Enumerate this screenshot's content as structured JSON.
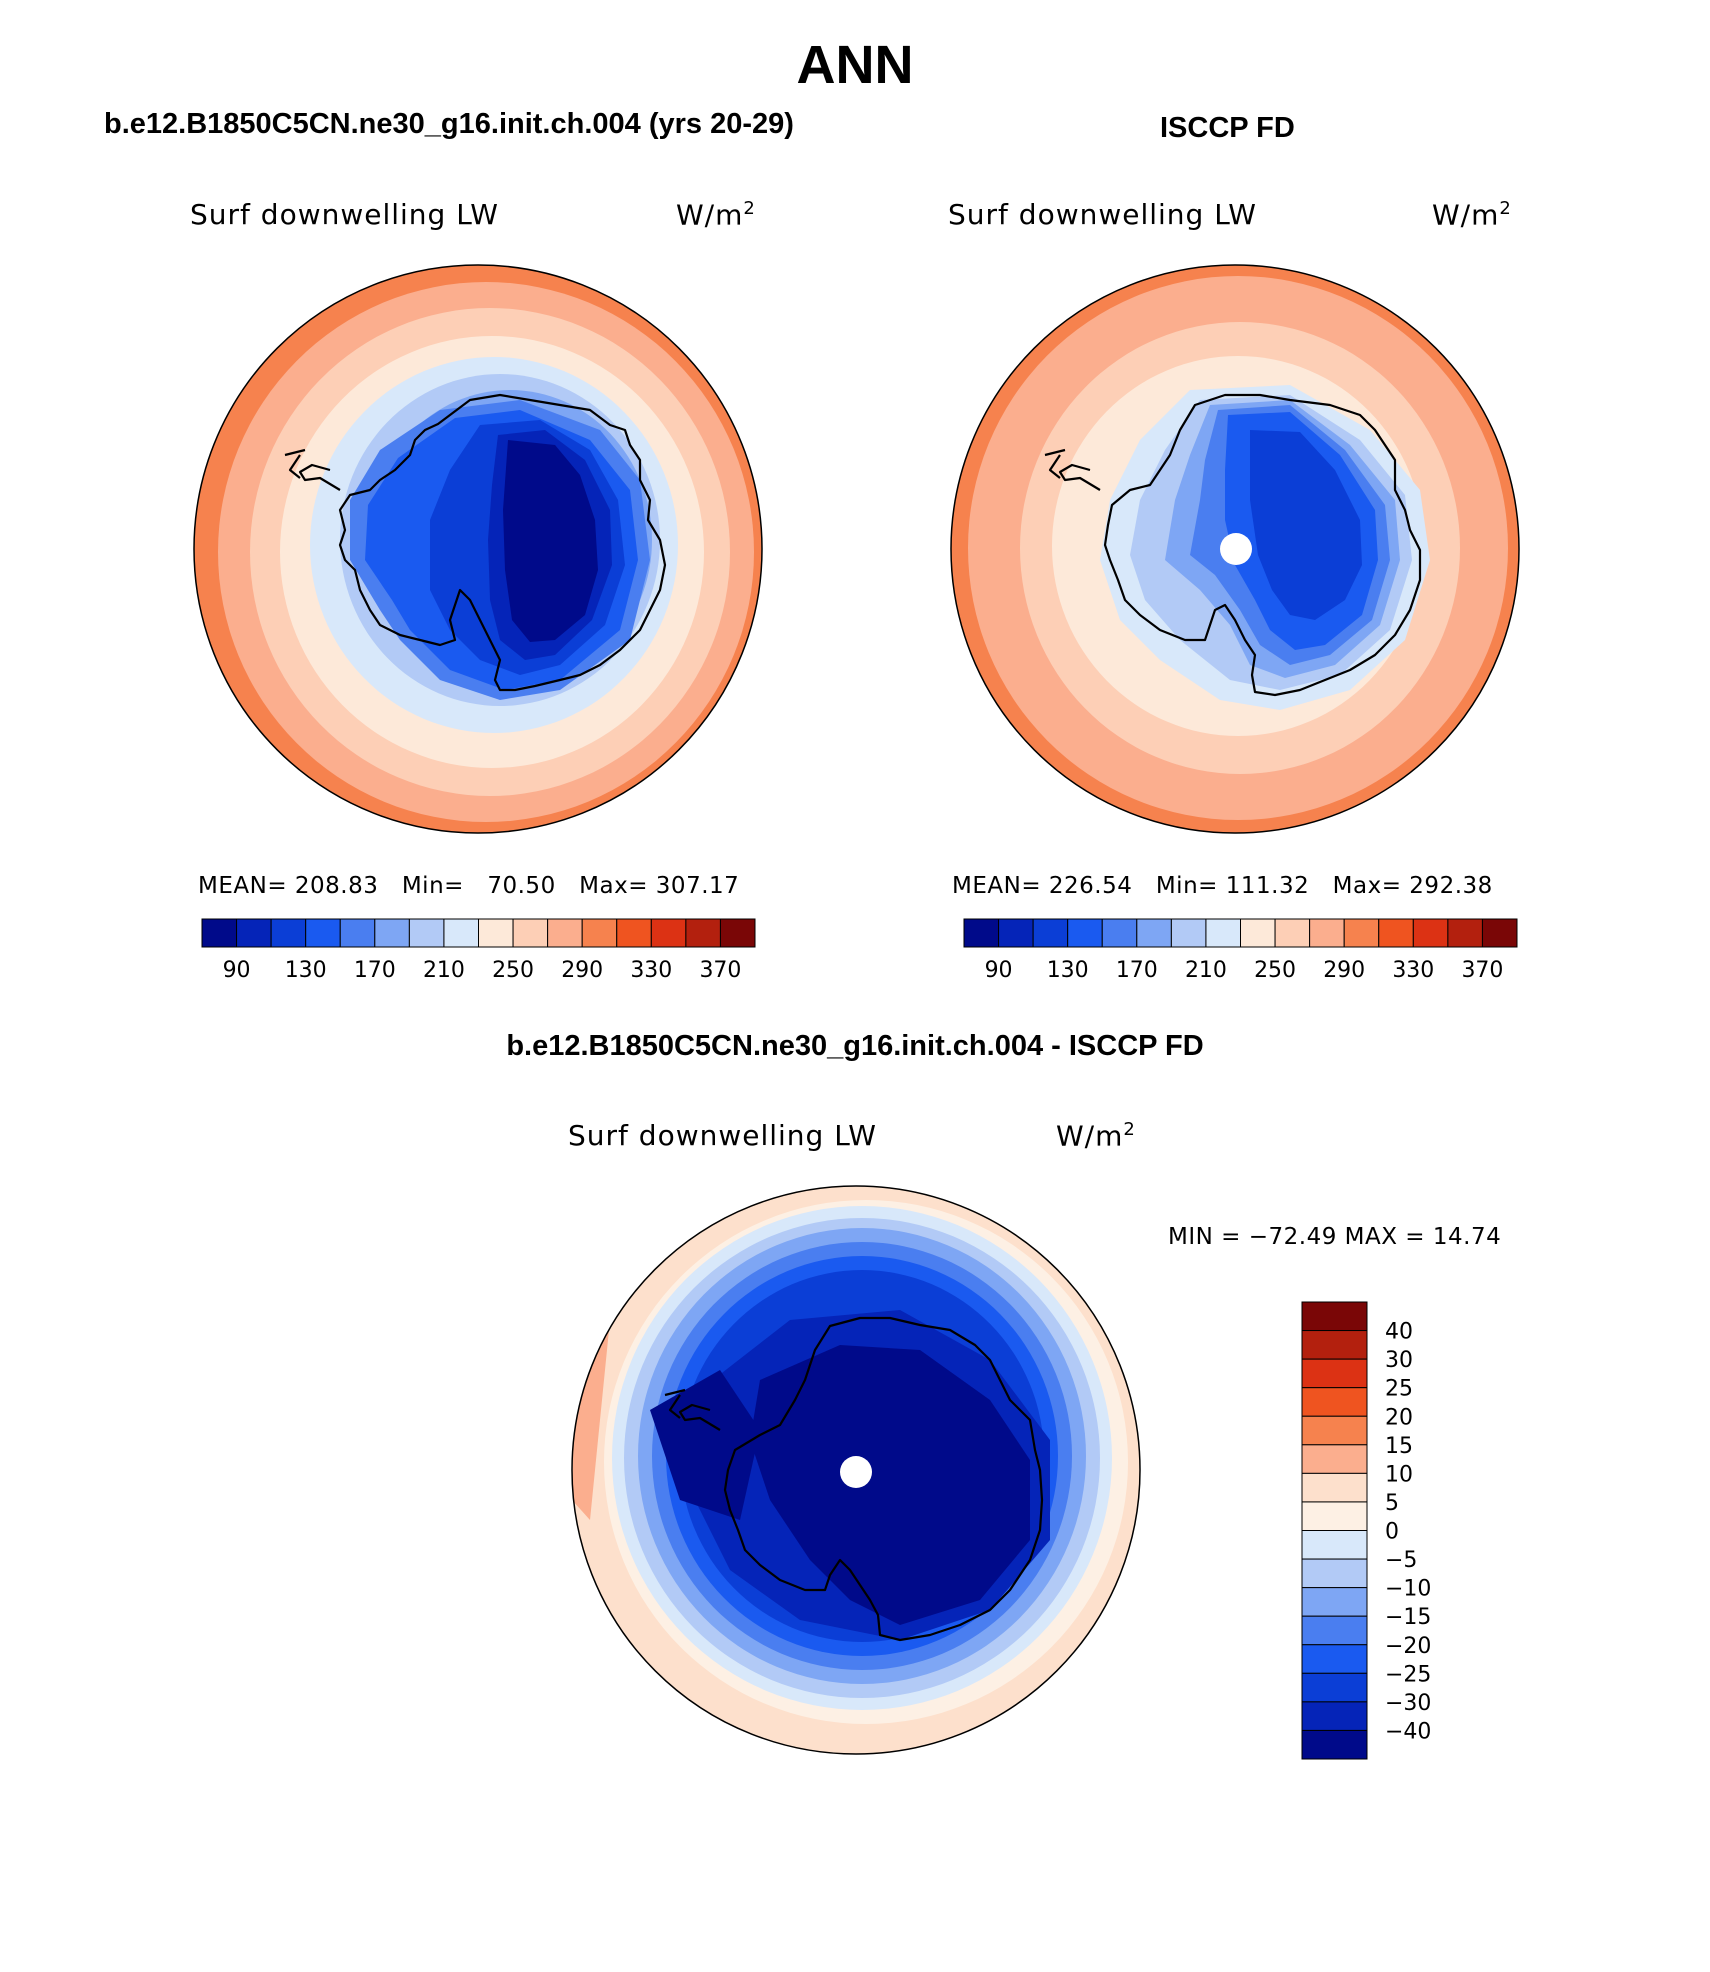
{
  "main_title": "ANN",
  "panels": [
    {
      "case_title": "b.e12.B1850C5CN.ne30_g16.init.ch.004 (yrs 20-29)",
      "variable": "Surf downwelling LW",
      "units_base": "W/m",
      "units_sup": "2",
      "stats": {
        "mean_label": "MEAN=",
        "mean": "208.83",
        "min_label": "Min=",
        "min": "70.50",
        "max_label": "Max=",
        "max": "307.17"
      }
    },
    {
      "case_title": "ISCCP FD",
      "variable": "Surf downwelling LW",
      "units_base": "W/m",
      "units_sup": "2",
      "stats": {
        "mean_label": "MEAN=",
        "mean": "226.54",
        "min_label": "Min=",
        "min": "111.32",
        "max_label": "Max=",
        "max": "292.38"
      }
    },
    {
      "case_title": "b.e12.B1850C5CN.ne30_g16.init.ch.004 - ISCCP FD",
      "variable": "Surf downwelling LW",
      "units_base": "W/m",
      "units_sup": "2",
      "stats_text": "MIN = −72.49 MAX =  14.74"
    }
  ],
  "colorbars": {
    "abs_ticks": [
      "90",
      "130",
      "170",
      "210",
      "250",
      "290",
      "330",
      "370"
    ],
    "abs_colors": [
      "#000a8a",
      "#0524b8",
      "#0b3ed6",
      "#1a5af0",
      "#4a7ef0",
      "#7ea6f4",
      "#b2caf6",
      "#d8e8fa",
      "#fde9d9",
      "#fdcfb6",
      "#fbae8e",
      "#f6824e",
      "#ef5420",
      "#dc3214",
      "#b3200e",
      "#7a0606"
    ],
    "diff_ticks": [
      "40",
      "30",
      "25",
      "20",
      "15",
      "10",
      "5",
      "0",
      "−5",
      "−10",
      "−15",
      "−20",
      "−25",
      "−30",
      "−40"
    ],
    "diff_colors": [
      "#7a0606",
      "#b3200e",
      "#dc3214",
      "#ef5420",
      "#f6824e",
      "#fbae8e",
      "#fde0cc",
      "#fdf0e4",
      "#d8e8fa",
      "#b2caf6",
      "#7ea6f4",
      "#4a7ef0",
      "#1a5af0",
      "#0b3ed6",
      "#0524b8",
      "#000a8a"
    ]
  },
  "chart_data": [
    {
      "type": "heatmap",
      "title": "Surf downwelling LW",
      "subtitle": "b.e12.B1850C5CN.ne30_g16.init.ch.004 (yrs 20-29)",
      "units": "W/m2",
      "projection": "south polar stereographic",
      "contour_levels": [
        90,
        110,
        130,
        150,
        170,
        190,
        210,
        230,
        250,
        270,
        290,
        310,
        330,
        350,
        370
      ],
      "mean": 208.83,
      "min": 70.5,
      "max": 307.17
    },
    {
      "type": "heatmap",
      "title": "Surf downwelling LW",
      "subtitle": "ISCCP FD",
      "units": "W/m2",
      "projection": "south polar stereographic",
      "contour_levels": [
        90,
        110,
        130,
        150,
        170,
        190,
        210,
        230,
        250,
        270,
        290,
        310,
        330,
        350,
        370
      ],
      "mean": 226.54,
      "min": 111.32,
      "max": 292.38
    },
    {
      "type": "heatmap",
      "title": "Surf downwelling LW",
      "subtitle": "b.e12.B1850C5CN.ne30_g16.init.ch.004 - ISCCP FD",
      "units": "W/m2",
      "projection": "south polar stereographic",
      "contour_levels": [
        -40,
        -30,
        -25,
        -20,
        -15,
        -10,
        -5,
        0,
        5,
        10,
        15,
        20,
        25,
        30,
        40
      ],
      "min": -72.49,
      "max": 14.74
    }
  ]
}
